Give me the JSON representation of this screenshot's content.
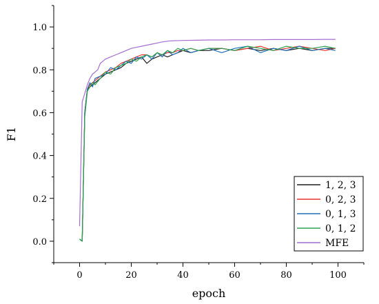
{
  "chart_data": {
    "type": "line",
    "xlabel": "epoch",
    "ylabel": "F1",
    "xlim": [
      -10,
      110
    ],
    "ylim": [
      -0.1,
      1.1
    ],
    "x_ticks": [
      0,
      20,
      40,
      60,
      80,
      100
    ],
    "y_ticks": [
      0.0,
      0.2,
      0.4,
      0.6,
      0.8,
      1.0
    ],
    "x_tick_labels": [
      "0",
      "20",
      "40",
      "60",
      "80",
      "100"
    ],
    "y_tick_labels": [
      "0.0",
      "0.2",
      "0.4",
      "0.6",
      "0.8",
      "1.0"
    ],
    "grid": false,
    "legend_position": "bottom-right",
    "series": [
      {
        "name": "1, 2, 3",
        "color": "#1a1a1a",
        "x": [
          0,
          1,
          2,
          3,
          4,
          5,
          6,
          8,
          10,
          12,
          14,
          16,
          18,
          20,
          22,
          24,
          26,
          28,
          30,
          32,
          34,
          36,
          38,
          40,
          43,
          46,
          50,
          55,
          60,
          65,
          70,
          75,
          80,
          85,
          90,
          95,
          99
        ],
        "y": [
          0.01,
          0.0,
          0.6,
          0.71,
          0.72,
          0.73,
          0.74,
          0.76,
          0.78,
          0.79,
          0.8,
          0.81,
          0.83,
          0.84,
          0.85,
          0.86,
          0.83,
          0.85,
          0.86,
          0.87,
          0.86,
          0.87,
          0.88,
          0.89,
          0.88,
          0.89,
          0.89,
          0.9,
          0.89,
          0.9,
          0.89,
          0.9,
          0.89,
          0.9,
          0.89,
          0.9,
          0.9
        ]
      },
      {
        "name": "0, 2, 3",
        "color": "#e8302a",
        "x": [
          0,
          1,
          2,
          3,
          4,
          5,
          6,
          8,
          10,
          12,
          14,
          16,
          18,
          20,
          22,
          24,
          26,
          28,
          30,
          32,
          34,
          36,
          38,
          40,
          43,
          46,
          50,
          55,
          60,
          65,
          70,
          75,
          80,
          85,
          90,
          95,
          99
        ],
        "y": [
          0.01,
          0.0,
          0.6,
          0.71,
          0.73,
          0.74,
          0.75,
          0.77,
          0.79,
          0.8,
          0.81,
          0.83,
          0.84,
          0.85,
          0.86,
          0.87,
          0.87,
          0.86,
          0.88,
          0.87,
          0.88,
          0.88,
          0.89,
          0.89,
          0.9,
          0.89,
          0.9,
          0.9,
          0.89,
          0.9,
          0.91,
          0.89,
          0.9,
          0.91,
          0.9,
          0.89,
          0.9
        ]
      },
      {
        "name": "0, 1, 3",
        "color": "#1f6fb8",
        "x": [
          0,
          1,
          2,
          3,
          4,
          5,
          6,
          8,
          10,
          12,
          14,
          16,
          18,
          20,
          22,
          24,
          26,
          28,
          30,
          32,
          34,
          36,
          38,
          40,
          43,
          46,
          50,
          55,
          60,
          65,
          70,
          75,
          80,
          85,
          90,
          95,
          99
        ],
        "y": [
          0.01,
          0.0,
          0.6,
          0.71,
          0.74,
          0.72,
          0.76,
          0.77,
          0.78,
          0.81,
          0.8,
          0.82,
          0.84,
          0.83,
          0.86,
          0.85,
          0.87,
          0.85,
          0.88,
          0.86,
          0.89,
          0.87,
          0.88,
          0.9,
          0.88,
          0.89,
          0.9,
          0.88,
          0.9,
          0.91,
          0.88,
          0.9,
          0.89,
          0.91,
          0.89,
          0.9,
          0.89
        ]
      },
      {
        "name": "0, 1, 2",
        "color": "#2ca24e",
        "x": [
          0,
          1,
          2,
          3,
          4,
          5,
          6,
          8,
          10,
          12,
          14,
          16,
          18,
          20,
          22,
          24,
          26,
          28,
          30,
          32,
          34,
          36,
          38,
          40,
          43,
          46,
          50,
          55,
          60,
          65,
          70,
          75,
          80,
          85,
          90,
          95,
          99
        ],
        "y": [
          0.01,
          0.0,
          0.58,
          0.7,
          0.72,
          0.74,
          0.73,
          0.76,
          0.79,
          0.78,
          0.81,
          0.82,
          0.83,
          0.85,
          0.84,
          0.86,
          0.87,
          0.86,
          0.88,
          0.87,
          0.89,
          0.88,
          0.9,
          0.89,
          0.9,
          0.89,
          0.9,
          0.9,
          0.89,
          0.91,
          0.9,
          0.89,
          0.91,
          0.9,
          0.9,
          0.91,
          0.9
        ]
      },
      {
        "name": "MFE",
        "color": "#a56cd1",
        "x": [
          0,
          1,
          2,
          3,
          4,
          5,
          6,
          7,
          8,
          10,
          12,
          14,
          16,
          18,
          20,
          22,
          24,
          26,
          28,
          30,
          32,
          35,
          40,
          45,
          50,
          55,
          60,
          65,
          70,
          75,
          80,
          85,
          90,
          95,
          99
        ],
        "y": [
          0.07,
          0.65,
          0.69,
          0.73,
          0.76,
          0.78,
          0.79,
          0.8,
          0.83,
          0.85,
          0.86,
          0.87,
          0.88,
          0.89,
          0.9,
          0.905,
          0.91,
          0.915,
          0.92,
          0.925,
          0.93,
          0.935,
          0.937,
          0.938,
          0.939,
          0.939,
          0.94,
          0.94,
          0.94,
          0.941,
          0.941,
          0.941,
          0.941,
          0.942,
          0.942
        ]
      }
    ]
  }
}
